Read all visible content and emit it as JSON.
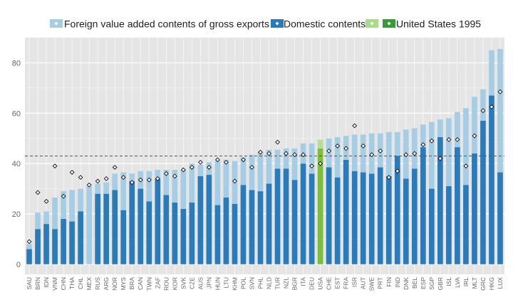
{
  "chart_data": {
    "type": "bar",
    "stacked": true,
    "categories": [
      "SAU",
      "BRN",
      "IDN",
      "VNM",
      "CHN",
      "THA",
      "CHL",
      "MEX",
      "RUS",
      "ARG",
      "NOR",
      "MYS",
      "BRA",
      "CAN",
      "TWN",
      "ZAF",
      "ROU",
      "KOR",
      "SVK",
      "CZE",
      "AUS",
      "JPN",
      "HUN",
      "LTU",
      "KHM",
      "POL",
      "SVN",
      "PHL",
      "NLD",
      "TUR",
      "NZL",
      "BGR",
      "ITA",
      "DEU",
      "USA",
      "CHE",
      "EST",
      "FRA",
      "ISR",
      "AUT",
      "SWE",
      "PRT",
      "FIN",
      "IND",
      "DNK",
      "BEL",
      "ESP",
      "SGP",
      "GBR",
      "ISL",
      "LVA",
      "IRL",
      "MLT",
      "GRC",
      "HKG",
      "LUX"
    ],
    "series": [
      {
        "name": "Domestic contents",
        "color": "#2b7bba",
        "values": [
          6,
          14,
          16,
          14,
          18,
          17,
          21,
          0,
          28,
          28,
          29.5,
          21.5,
          33,
          30,
          25,
          34,
          27.5,
          24.5,
          22,
          24.5,
          35,
          35.5,
          23.5,
          26.5,
          24,
          31.5,
          29.5,
          29,
          32,
          38,
          38,
          33.5,
          40,
          36,
          46,
          38.5,
          34.5,
          41.5,
          37,
          36.5,
          36,
          38.5,
          35,
          43,
          34,
          38,
          46.5,
          30,
          50.5,
          31,
          46.5,
          31.5,
          44,
          57,
          67,
          36.5
        ]
      },
      {
        "name": "Foreign value added contents of gross exports",
        "color": "#a6cde3",
        "values": [
          2,
          6.5,
          5,
          12.5,
          11,
          12.5,
          9,
          31,
          4,
          4.5,
          6.5,
          15,
          3,
          7,
          12,
          3.5,
          10,
          13,
          15.5,
          15.5,
          4.5,
          5,
          17.5,
          15,
          17,
          11,
          14,
          15.5,
          13.5,
          7.5,
          8,
          12.5,
          8,
          12,
          3.5,
          11.5,
          16,
          9.5,
          14.5,
          15,
          16,
          13.5,
          17.5,
          9.5,
          19.5,
          16,
          9,
          26.5,
          7,
          27,
          14,
          30.5,
          22.5,
          12.5,
          18,
          49
        ]
      }
    ],
    "markers": {
      "name": "United States 1995",
      "values": [
        9,
        28.5,
        25,
        39,
        27,
        36.5,
        34.5,
        31.5,
        33,
        34,
        38.5,
        34.5,
        32.5,
        33.5,
        33.5,
        34,
        36,
        35,
        37.5,
        38.5,
        40.5,
        38.5,
        41.5,
        40.5,
        33,
        41.5,
        38.5,
        44.5,
        44,
        48.5,
        44,
        43.5,
        43.5,
        39,
        40,
        45,
        47,
        46,
        55,
        47,
        43.5,
        45,
        34.5,
        37,
        43.5,
        44,
        47.5,
        49,
        42,
        49.5,
        49.5,
        39,
        51,
        61,
        62.5,
        68.5
      ]
    },
    "highlight": {
      "category": "USA",
      "name": "United States 1995",
      "color": "#7dbd3e"
    },
    "reference_line": 43,
    "ylim": [
      -4,
      90
    ],
    "yticks": [
      0,
      20,
      40,
      60,
      80
    ],
    "grid": true,
    "legend_position": "top"
  },
  "legend": [
    {
      "label": "Foreign value added contents of gross exports",
      "swatch": "#a6cde3",
      "icon": "white-diamond-marker-icon"
    },
    {
      "label": "Domestic contents",
      "swatch": "#2b7bba",
      "icon": "white-diamond-marker-icon"
    },
    {
      "label": "",
      "swatch": "#a8dc8c",
      "icon": "white-diamond-marker-icon"
    },
    {
      "label": "United States 1995",
      "swatch": "#3a9a3a",
      "icon": "white-diamond-marker-icon"
    }
  ]
}
